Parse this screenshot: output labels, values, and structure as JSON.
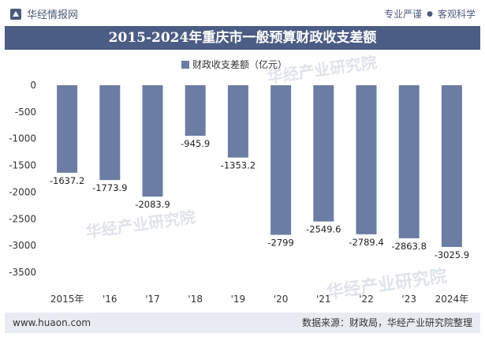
{
  "header": {
    "brand_name": "华经情报网",
    "slogan_left": "专业严谨",
    "slogan_right": "客观科学"
  },
  "colors": {
    "bar": "#6b7da3",
    "title_bg": "#4b5d84",
    "footer_bg": "#e8ebf1"
  },
  "chart_data": {
    "type": "bar",
    "title": "2015-2024年重庆市一般预算财政收支差额",
    "legend": "财政收支差额（亿元）",
    "categories": [
      "2015年",
      "'16",
      "'17",
      "'18",
      "'19",
      "'20",
      "'21",
      "'22",
      "'23",
      "2024年"
    ],
    "values": [
      -1637.2,
      -1773.9,
      -2083.9,
      -945.9,
      -1353.2,
      -2799,
      -2549.6,
      -2789.4,
      -2863.8,
      -3025.9
    ],
    "value_labels": [
      "-1637.2",
      "-1773.9",
      "-2083.9",
      "-945.9",
      "-1353.2",
      "-2799",
      "-2549.6",
      "-2789.4",
      "-2863.8",
      "-3025.9"
    ],
    "yticks": [
      0,
      -500,
      -1000,
      -1500,
      -2000,
      -2500,
      -3000,
      -3500
    ],
    "ylim": [
      -3500,
      0
    ],
    "xlabel": "",
    "ylabel": "",
    "legend_position": "top-center",
    "grid": false
  },
  "watermarks": {
    "cn": "华经产业研究院",
    "url": "www.huaon.com"
  },
  "footer": {
    "site": "www.huaon.com",
    "source": "数据来源：财政局，华经产业研究院整理"
  }
}
